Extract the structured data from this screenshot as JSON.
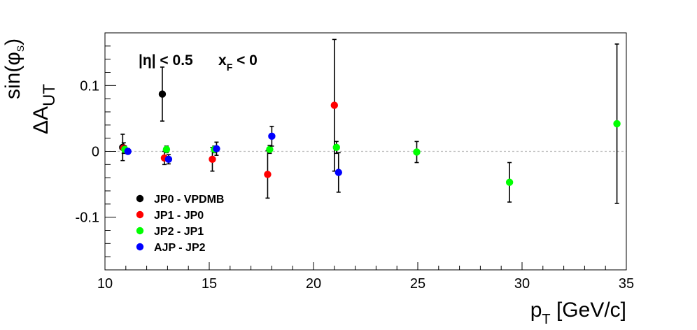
{
  "chart_data": {
    "type": "scatter",
    "xlabel": {
      "main": "p",
      "sub": "T",
      "unit": " [GeV/c]"
    },
    "ylabel": {
      "main": "ΔA",
      "sub": "UT",
      "sup": "sin(φ",
      "sup_sub": "S",
      "sup_end": ")"
    },
    "xlim": [
      10,
      35
    ],
    "ylim": [
      -0.18,
      0.18
    ],
    "x_ticks": [
      10,
      15,
      20,
      25,
      30,
      35
    ],
    "x_tick_labels": [
      "10",
      "15",
      "20",
      "25",
      "30",
      "35"
    ],
    "y_ticks": [
      -0.1,
      0,
      0.1
    ],
    "y_tick_labels": [
      "-0.1",
      "0",
      "0.1"
    ],
    "reference_line": 0,
    "grid": false,
    "legend_position": "bottom-left",
    "annotation": {
      "eta": "|η| < 0.5",
      "xf_main": "x",
      "xf_sub": "F",
      "xf_rest": " < 0"
    },
    "series": [
      {
        "name": "JP0 - VPDMB",
        "color": "#000000",
        "points": [
          {
            "x": 10.85,
            "y": 0.006,
            "err": 0.02
          },
          {
            "x": 12.75,
            "y": 0.087,
            "err": 0.041
          }
        ]
      },
      {
        "name": "JP1 - JP0",
        "color": "#ff0000",
        "points": [
          {
            "x": 10.9,
            "y": 0.005,
            "err": 0.008
          },
          {
            "x": 12.85,
            "y": -0.01,
            "err": 0.01
          },
          {
            "x": 15.15,
            "y": -0.012,
            "err": 0.018
          },
          {
            "x": 17.8,
            "y": -0.035,
            "err": 0.036
          },
          {
            "x": 21.0,
            "y": 0.07,
            "err": 0.1
          }
        ]
      },
      {
        "name": "JP2 - JP1",
        "color": "#00ff00",
        "points": [
          {
            "x": 10.95,
            "y": 0.003,
            "err": 0.005
          },
          {
            "x": 12.95,
            "y": 0.003,
            "err": 0.005
          },
          {
            "x": 15.25,
            "y": 0.003,
            "err": 0.005
          },
          {
            "x": 17.9,
            "y": 0.003,
            "err": 0.006
          },
          {
            "x": 21.1,
            "y": 0.006,
            "err": 0.009
          },
          {
            "x": 24.95,
            "y": -0.001,
            "err": 0.016
          },
          {
            "x": 29.4,
            "y": -0.047,
            "err": 0.03
          },
          {
            "x": 34.55,
            "y": 0.042,
            "err": 0.121
          }
        ]
      },
      {
        "name": "AJP - JP2",
        "color": "#0000ff",
        "points": [
          {
            "x": 11.1,
            "y": 0.0,
            "err": 0.004
          },
          {
            "x": 13.05,
            "y": -0.012,
            "err": 0.007
          },
          {
            "x": 15.35,
            "y": 0.004,
            "err": 0.01
          },
          {
            "x": 18.0,
            "y": 0.023,
            "err": 0.015
          },
          {
            "x": 21.2,
            "y": -0.032,
            "err": 0.03
          }
        ]
      }
    ]
  }
}
